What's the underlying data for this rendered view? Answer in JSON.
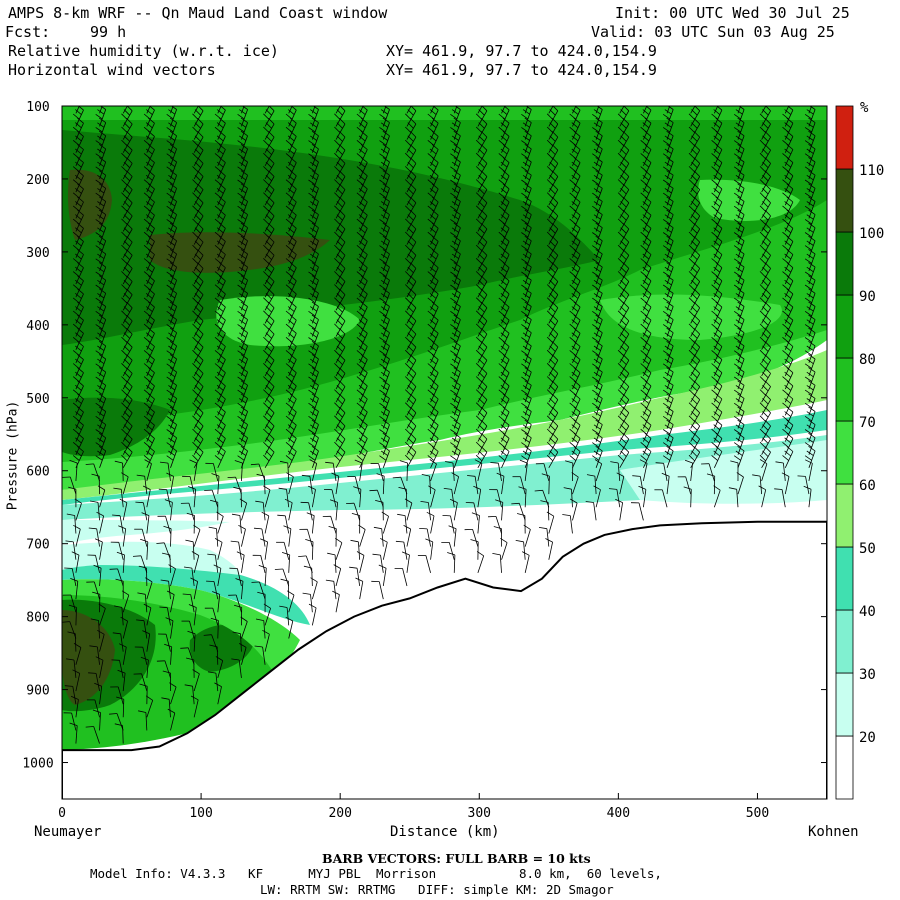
{
  "header": {
    "title": "AMPS 8-km WRF -- Qn Maud Land Coast window",
    "init": "Init: 00 UTC Wed 30 Jul 25",
    "fcst_label": "Fcst:",
    "fcst_value": "99 h",
    "valid": "Valid: 03 UTC Sun 03 Aug 25",
    "field1": "Relative humidity (w.r.t. ice)",
    "xy1": "XY= 461.9, 97.7 to 424.0,154.9",
    "field2": "Horizontal wind vectors",
    "xy2": "XY= 461.9, 97.7 to 424.0,154.9"
  },
  "axes": {
    "ylabel": "Pressure (hPa)",
    "xlabel": "Distance (km)",
    "left_station": "Neumayer",
    "right_station": "Kohnen"
  },
  "colorbar": {
    "unit": "%",
    "levels": [
      "20",
      "30",
      "40",
      "50",
      "60",
      "70",
      "80",
      "90",
      "100",
      "110"
    ],
    "colors": [
      "#ffffff",
      "#c8fff0",
      "#80f0d0",
      "#40e0b0",
      "#90f070",
      "#40e040",
      "#20c020",
      "#10a010",
      "#0a7a0a",
      "#355010",
      "#d02010"
    ]
  },
  "footer": {
    "barb_note": "BARB VECTORS:  FULL BARB = 10 kts",
    "model_info": "Model Info: V4.3.3   KF      MYJ PBL  Morrison           8.0 km,  60 levels,",
    "physics": "LW: RRTM SW: RRTMG   DIFF: simple KM: 2D Smagor"
  },
  "chart_data": {
    "type": "heatmap",
    "title": "Relative humidity (w.r.t. ice)",
    "xlabel": "Distance (km)",
    "ylabel": "Pressure (hPa)",
    "xlim": [
      0,
      550
    ],
    "ylim": [
      1050,
      100
    ],
    "x_ticks": [
      0,
      100,
      200,
      300,
      400,
      500
    ],
    "y_ticks": [
      100,
      200,
      300,
      400,
      500,
      600,
      700,
      800,
      900,
      1000
    ],
    "terrain_pressure_hPa": {
      "x": [
        0,
        10,
        30,
        50,
        70,
        90,
        110,
        130,
        150,
        170,
        190,
        210,
        230,
        250,
        270,
        290,
        310,
        330,
        345,
        360,
        375,
        390,
        410,
        430,
        460,
        500,
        550
      ],
      "p": [
        983,
        983,
        983,
        983,
        978,
        960,
        935,
        905,
        875,
        845,
        820,
        800,
        785,
        775,
        760,
        748,
        760,
        765,
        748,
        718,
        700,
        688,
        680,
        675,
        672,
        670,
        670
      ]
    },
    "wind_barbs": "Horizontal wind barbs plotted on a regular distance-pressure grid (full barb = 10 kts)"
  }
}
